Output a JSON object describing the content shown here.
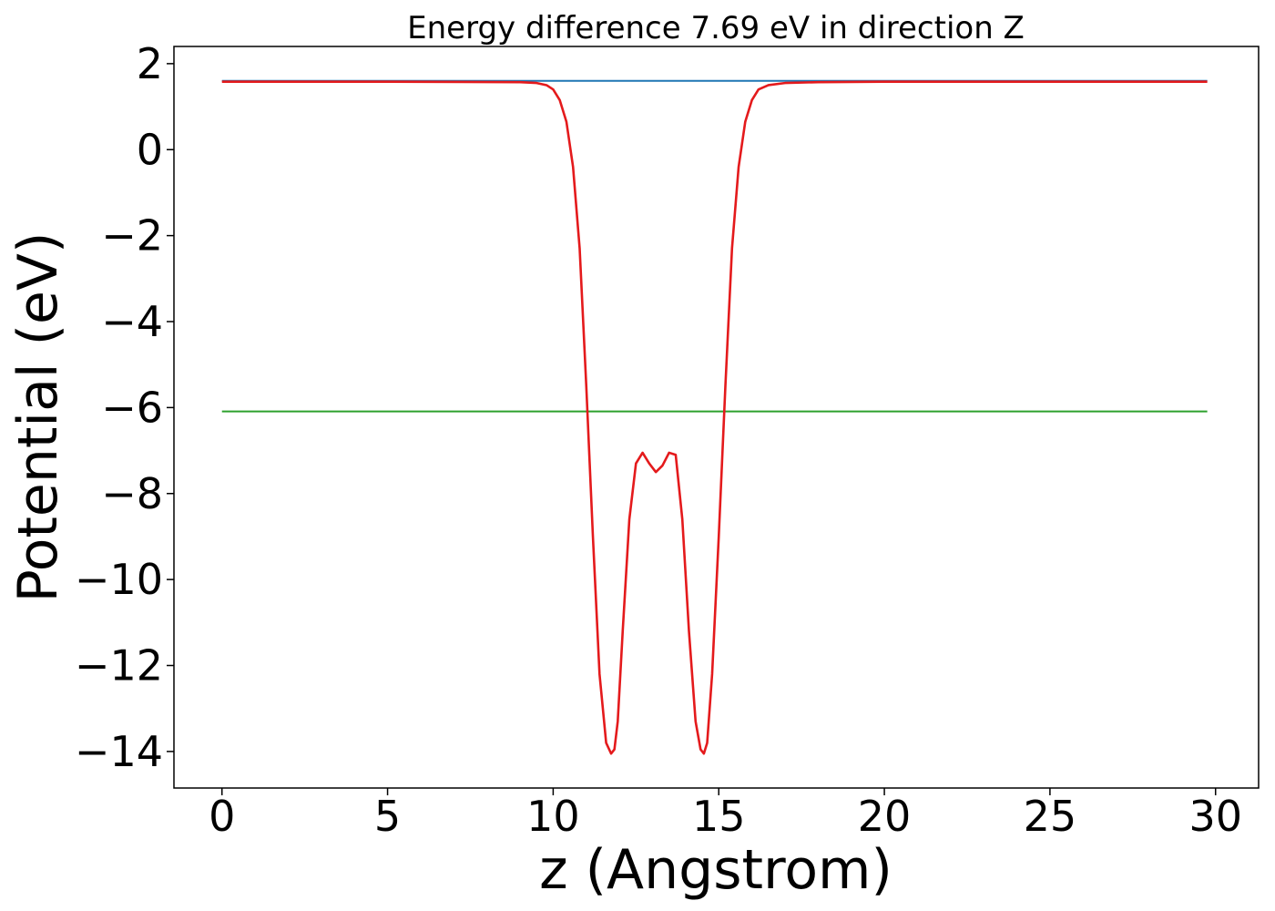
{
  "chart_data": {
    "type": "line",
    "title": "Energy difference 7.69 eV in direction Z",
    "xlabel": "z (Angstrom)",
    "ylabel": "Potential (eV)",
    "xlim": [
      -1.45,
      31.3
    ],
    "ylim": [
      -14.85,
      2.4
    ],
    "xticks": [
      0,
      5,
      10,
      15,
      20,
      25,
      30
    ],
    "yticks": [
      2,
      0,
      -2,
      -4,
      -6,
      -8,
      -10,
      -12,
      -14
    ],
    "xtick_labels": [
      "0",
      "5",
      "10",
      "15",
      "20",
      "25",
      "30"
    ],
    "ytick_labels": [
      "2",
      "0",
      "−2",
      "−4",
      "−6",
      "−8",
      "−10",
      "−12",
      "−14"
    ],
    "grid": false,
    "legend": "none",
    "series": [
      {
        "color": "#1f77b4",
        "x": [
          0,
          29.75
        ],
        "y": [
          1.6,
          1.6
        ]
      },
      {
        "color": "#2ca02c",
        "x": [
          0,
          29.75
        ],
        "y": [
          -6.09,
          -6.09
        ]
      },
      {
        "color": "#e41a1c",
        "x": [
          0,
          5,
          9.0,
          9.5,
          9.8,
          10.0,
          10.2,
          10.4,
          10.6,
          10.8,
          11.0,
          11.2,
          11.4,
          11.6,
          11.75,
          11.85,
          11.95,
          12.1,
          12.3,
          12.5,
          12.7,
          12.9,
          13.1,
          13.3,
          13.5,
          13.7,
          13.9,
          14.1,
          14.3,
          14.45,
          14.55,
          14.65,
          14.8,
          15.0,
          15.2,
          15.4,
          15.6,
          15.8,
          16.0,
          16.2,
          16.5,
          17.0,
          18.0,
          20,
          25,
          29.75
        ],
        "y": [
          1.58,
          1.58,
          1.57,
          1.55,
          1.5,
          1.4,
          1.15,
          0.65,
          -0.4,
          -2.3,
          -5.5,
          -9.0,
          -12.2,
          -13.8,
          -14.05,
          -13.95,
          -13.3,
          -11.2,
          -8.6,
          -7.3,
          -7.05,
          -7.3,
          -7.5,
          -7.35,
          -7.05,
          -7.1,
          -8.6,
          -11.2,
          -13.3,
          -13.95,
          -14.05,
          -13.8,
          -12.2,
          -9.0,
          -5.5,
          -2.3,
          -0.4,
          0.65,
          1.15,
          1.4,
          1.5,
          1.55,
          1.57,
          1.58,
          1.58,
          1.58
        ]
      }
    ]
  }
}
